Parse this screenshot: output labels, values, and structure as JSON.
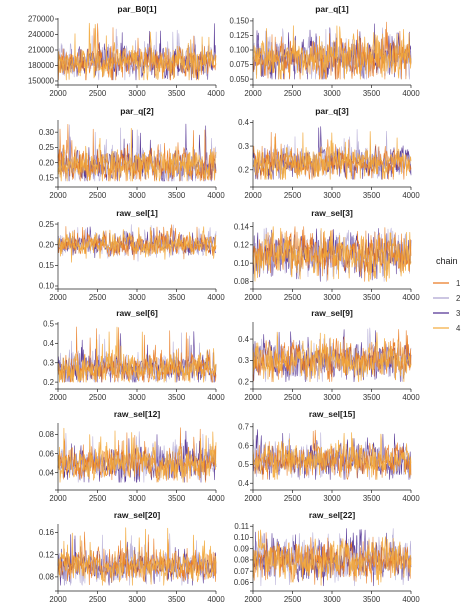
{
  "legend": {
    "title": "chain",
    "entries": [
      {
        "label": "1",
        "color": "#e8751a"
      },
      {
        "label": "2",
        "color": "#a99fcf"
      },
      {
        "label": "3",
        "color": "#4b2a8f"
      },
      {
        "label": "4",
        "color": "#f2a93b"
      }
    ]
  },
  "chart_data": [
    {
      "type": "line",
      "title": "par_B0[1]",
      "xlim": [
        2000,
        4000
      ],
      "ylim": [
        148000,
        272000
      ],
      "x_ticks": [
        2000,
        2500,
        3000,
        3500,
        4000
      ],
      "y_ticks": [
        150000,
        180000,
        210000,
        240000,
        270000
      ],
      "y_tick_labels": [
        "150000",
        "180000",
        "210000",
        "240000",
        "270000"
      ],
      "series_summary": {
        "center": 188000,
        "spread": 14000,
        "min": 152000,
        "max": 262000
      }
    },
    {
      "type": "line",
      "title": "par_q[1]",
      "xlim": [
        2000,
        4000
      ],
      "ylim": [
        0.045,
        0.155
      ],
      "x_ticks": [
        2000,
        2500,
        3000,
        3500,
        4000
      ],
      "y_ticks": [
        0.05,
        0.075,
        0.1,
        0.125,
        0.15
      ],
      "y_tick_labels": [
        "0.050",
        "0.075",
        "0.100",
        "0.125",
        "0.150"
      ],
      "series_summary": {
        "center": 0.086,
        "spread": 0.016,
        "min": 0.05,
        "max": 0.148
      }
    },
    {
      "type": "line",
      "title": "par_q[2]",
      "xlim": [
        2000,
        4000
      ],
      "ylim": [
        0.13,
        0.34
      ],
      "x_ticks": [
        2000,
        2500,
        3000,
        3500,
        4000
      ],
      "y_ticks": [
        0.15,
        0.2,
        0.25,
        0.3
      ],
      "y_tick_labels": [
        "0.15",
        "0.20",
        "0.25",
        "0.30"
      ],
      "series_summary": {
        "center": 0.19,
        "spread": 0.025,
        "min": 0.14,
        "max": 0.33
      }
    },
    {
      "type": "line",
      "title": "par_q[3]",
      "xlim": [
        2000,
        4000
      ],
      "ylim": [
        0.14,
        0.41
      ],
      "x_ticks": [
        2000,
        2500,
        3000,
        3500,
        4000
      ],
      "y_ticks": [
        0.2,
        0.3,
        0.4
      ],
      "y_tick_labels": [
        "0.2",
        "0.3",
        "0.4"
      ],
      "series_summary": {
        "center": 0.23,
        "spread": 0.03,
        "min": 0.16,
        "max": 0.39
      }
    },
    {
      "type": "line",
      "title": "raw_sel[1]",
      "xlim": [
        2000,
        4000
      ],
      "ylim": [
        0.1,
        0.255
      ],
      "x_ticks": [
        2000,
        2500,
        3000,
        3500,
        4000
      ],
      "y_ticks": [
        0.1,
        0.15,
        0.2,
        0.25
      ],
      "y_tick_labels": [
        "0.10",
        "0.15",
        "0.20",
        "0.25"
      ],
      "series_summary": {
        "center": 0.2,
        "spread": 0.012,
        "min": 0.11,
        "max": 0.25
      }
    },
    {
      "type": "line",
      "title": "raw_sel[3]",
      "xlim": [
        2000,
        4000
      ],
      "ylim": [
        0.075,
        0.145
      ],
      "x_ticks": [
        2000,
        2500,
        3000,
        3500,
        4000
      ],
      "y_ticks": [
        0.08,
        0.1,
        0.12,
        0.14
      ],
      "y_tick_labels": [
        "0.08",
        "0.10",
        "0.12",
        "0.14"
      ],
      "series_summary": {
        "center": 0.11,
        "spread": 0.011,
        "min": 0.08,
        "max": 0.14
      }
    },
    {
      "type": "line",
      "title": "raw_sel[6]",
      "xlim": [
        2000,
        4000
      ],
      "ylim": [
        0.18,
        0.51
      ],
      "x_ticks": [
        2000,
        2500,
        3000,
        3500,
        4000
      ],
      "y_ticks": [
        0.2,
        0.3,
        0.4,
        0.5
      ],
      "y_tick_labels": [
        "0.2",
        "0.3",
        "0.4",
        "0.5"
      ],
      "series_summary": {
        "center": 0.27,
        "spread": 0.035,
        "min": 0.2,
        "max": 0.49
      }
    },
    {
      "type": "line",
      "title": "raw_sel[9]",
      "xlim": [
        2000,
        4000
      ],
      "ylim": [
        0.18,
        0.48
      ],
      "x_ticks": [
        2000,
        2500,
        3000,
        3500,
        4000
      ],
      "y_ticks": [
        0.2,
        0.3,
        0.4
      ],
      "y_tick_labels": [
        "0.2",
        "0.3",
        "0.4"
      ],
      "series_summary": {
        "center": 0.3,
        "spread": 0.04,
        "min": 0.2,
        "max": 0.46
      }
    },
    {
      "type": "line",
      "title": "raw_sel[12]",
      "xlim": [
        2000,
        4000
      ],
      "ylim": [
        0.025,
        0.092
      ],
      "x_ticks": [
        2000,
        2500,
        3000,
        3500,
        4000
      ],
      "y_ticks": [
        0.04,
        0.06,
        0.08
      ],
      "y_tick_labels": [
        "0.04",
        "0.06",
        "0.08"
      ],
      "series_summary": {
        "center": 0.05,
        "spread": 0.008,
        "min": 0.03,
        "max": 0.088
      }
    },
    {
      "type": "line",
      "title": "raw_sel[15]",
      "xlim": [
        2000,
        4000
      ],
      "ylim": [
        0.38,
        0.72
      ],
      "x_ticks": [
        2000,
        2500,
        3000,
        3500,
        4000
      ],
      "y_ticks": [
        0.4,
        0.5,
        0.6,
        0.7
      ],
      "y_tick_labels": [
        "0.4",
        "0.5",
        "0.6",
        "0.7"
      ],
      "series_summary": {
        "center": 0.52,
        "spread": 0.04,
        "min": 0.42,
        "max": 0.69
      }
    },
    {
      "type": "line",
      "title": "raw_sel[20]",
      "xlim": [
        2000,
        4000
      ],
      "ylim": [
        0.06,
        0.175
      ],
      "x_ticks": [
        2000,
        2500,
        3000,
        3500,
        4000
      ],
      "y_ticks": [
        0.08,
        0.12,
        0.16
      ],
      "y_tick_labels": [
        "0.08",
        "0.12",
        "0.16"
      ],
      "series_summary": {
        "center": 0.1,
        "spread": 0.013,
        "min": 0.065,
        "max": 0.17
      }
    },
    {
      "type": "line",
      "title": "raw_sel[22]",
      "xlim": [
        2000,
        4000
      ],
      "ylim": [
        0.055,
        0.112
      ],
      "x_ticks": [
        2000,
        2500,
        3000,
        3500,
        4000
      ],
      "y_ticks": [
        0.06,
        0.07,
        0.08,
        0.09,
        0.1,
        0.11
      ],
      "y_tick_labels": [
        "0.06",
        "0.07",
        "0.08",
        "0.09",
        "0.10",
        "0.11"
      ],
      "series_summary": {
        "center": 0.08,
        "spread": 0.008,
        "min": 0.057,
        "max": 0.108
      }
    }
  ]
}
